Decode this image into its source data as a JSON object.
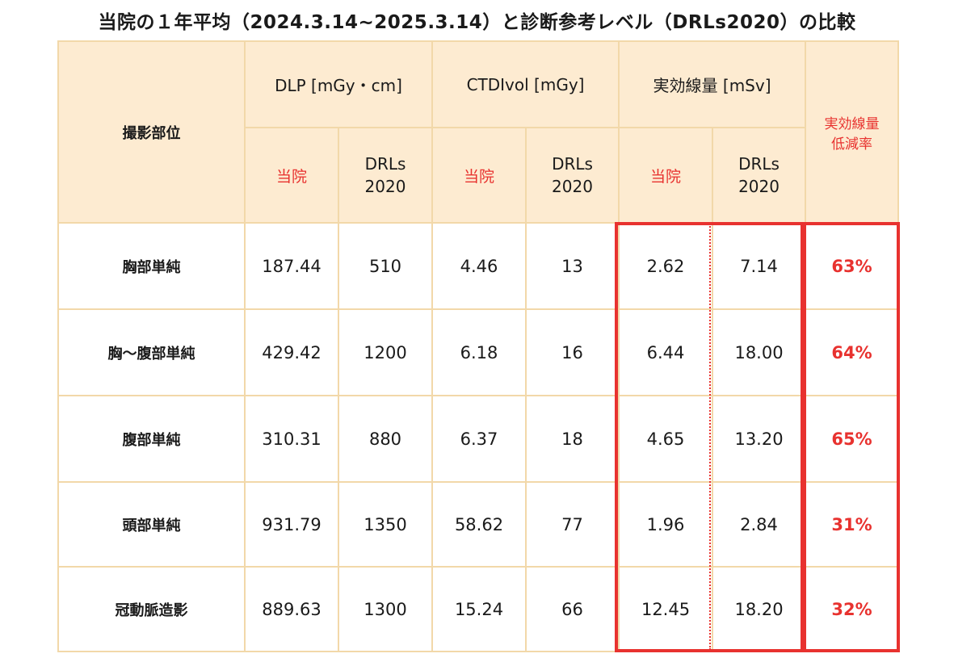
{
  "title": "当院の１年平均（2024.3.14~2025.3.14）と診断参考レベル（DRLs2020）の比較",
  "headers": {
    "part": "撮影部位",
    "dlp": "DLP [mGy・cm]",
    "ctdi": "CTDIvol [mGy]",
    "eff": "実効線量 [mSv]",
    "reduction_line1": "実効線量",
    "reduction_line2": "低減率",
    "ours": "当院",
    "drls_line1": "DRLs",
    "drls_line2": "2020"
  },
  "rows": [
    {
      "part": "胸部単純",
      "dlp_ours": "187.44",
      "dlp_drls": "510",
      "ctdi_ours": "4.46",
      "ctdi_drls": "13",
      "eff_ours": "2.62",
      "eff_drls": "7.14",
      "reduction": "63%"
    },
    {
      "part": "胸〜腹部単純",
      "dlp_ours": "429.42",
      "dlp_drls": "1200",
      "ctdi_ours": "6.18",
      "ctdi_drls": "16",
      "eff_ours": "6.44",
      "eff_drls": "18.00",
      "reduction": "64%"
    },
    {
      "part": "腹部単純",
      "dlp_ours": "310.31",
      "dlp_drls": "880",
      "ctdi_ours": "6.37",
      "ctdi_drls": "18",
      "eff_ours": "4.65",
      "eff_drls": "13.20",
      "reduction": "65%"
    },
    {
      "part": "頭部単純",
      "dlp_ours": "931.79",
      "dlp_drls": "1350",
      "ctdi_ours": "58.62",
      "ctdi_drls": "77",
      "eff_ours": "1.96",
      "eff_drls": "2.84",
      "reduction": "31%"
    },
    {
      "part": "冠動脈造影",
      "dlp_ours": "889.63",
      "dlp_drls": "1300",
      "ctdi_ours": "15.24",
      "ctdi_drls": "66",
      "eff_ours": "12.45",
      "eff_drls": "18.20",
      "reduction": "32%"
    }
  ],
  "colors": {
    "header_bg": "#fdebd1",
    "border": "#f2d8a9",
    "highlight_red": "#e8322f"
  }
}
